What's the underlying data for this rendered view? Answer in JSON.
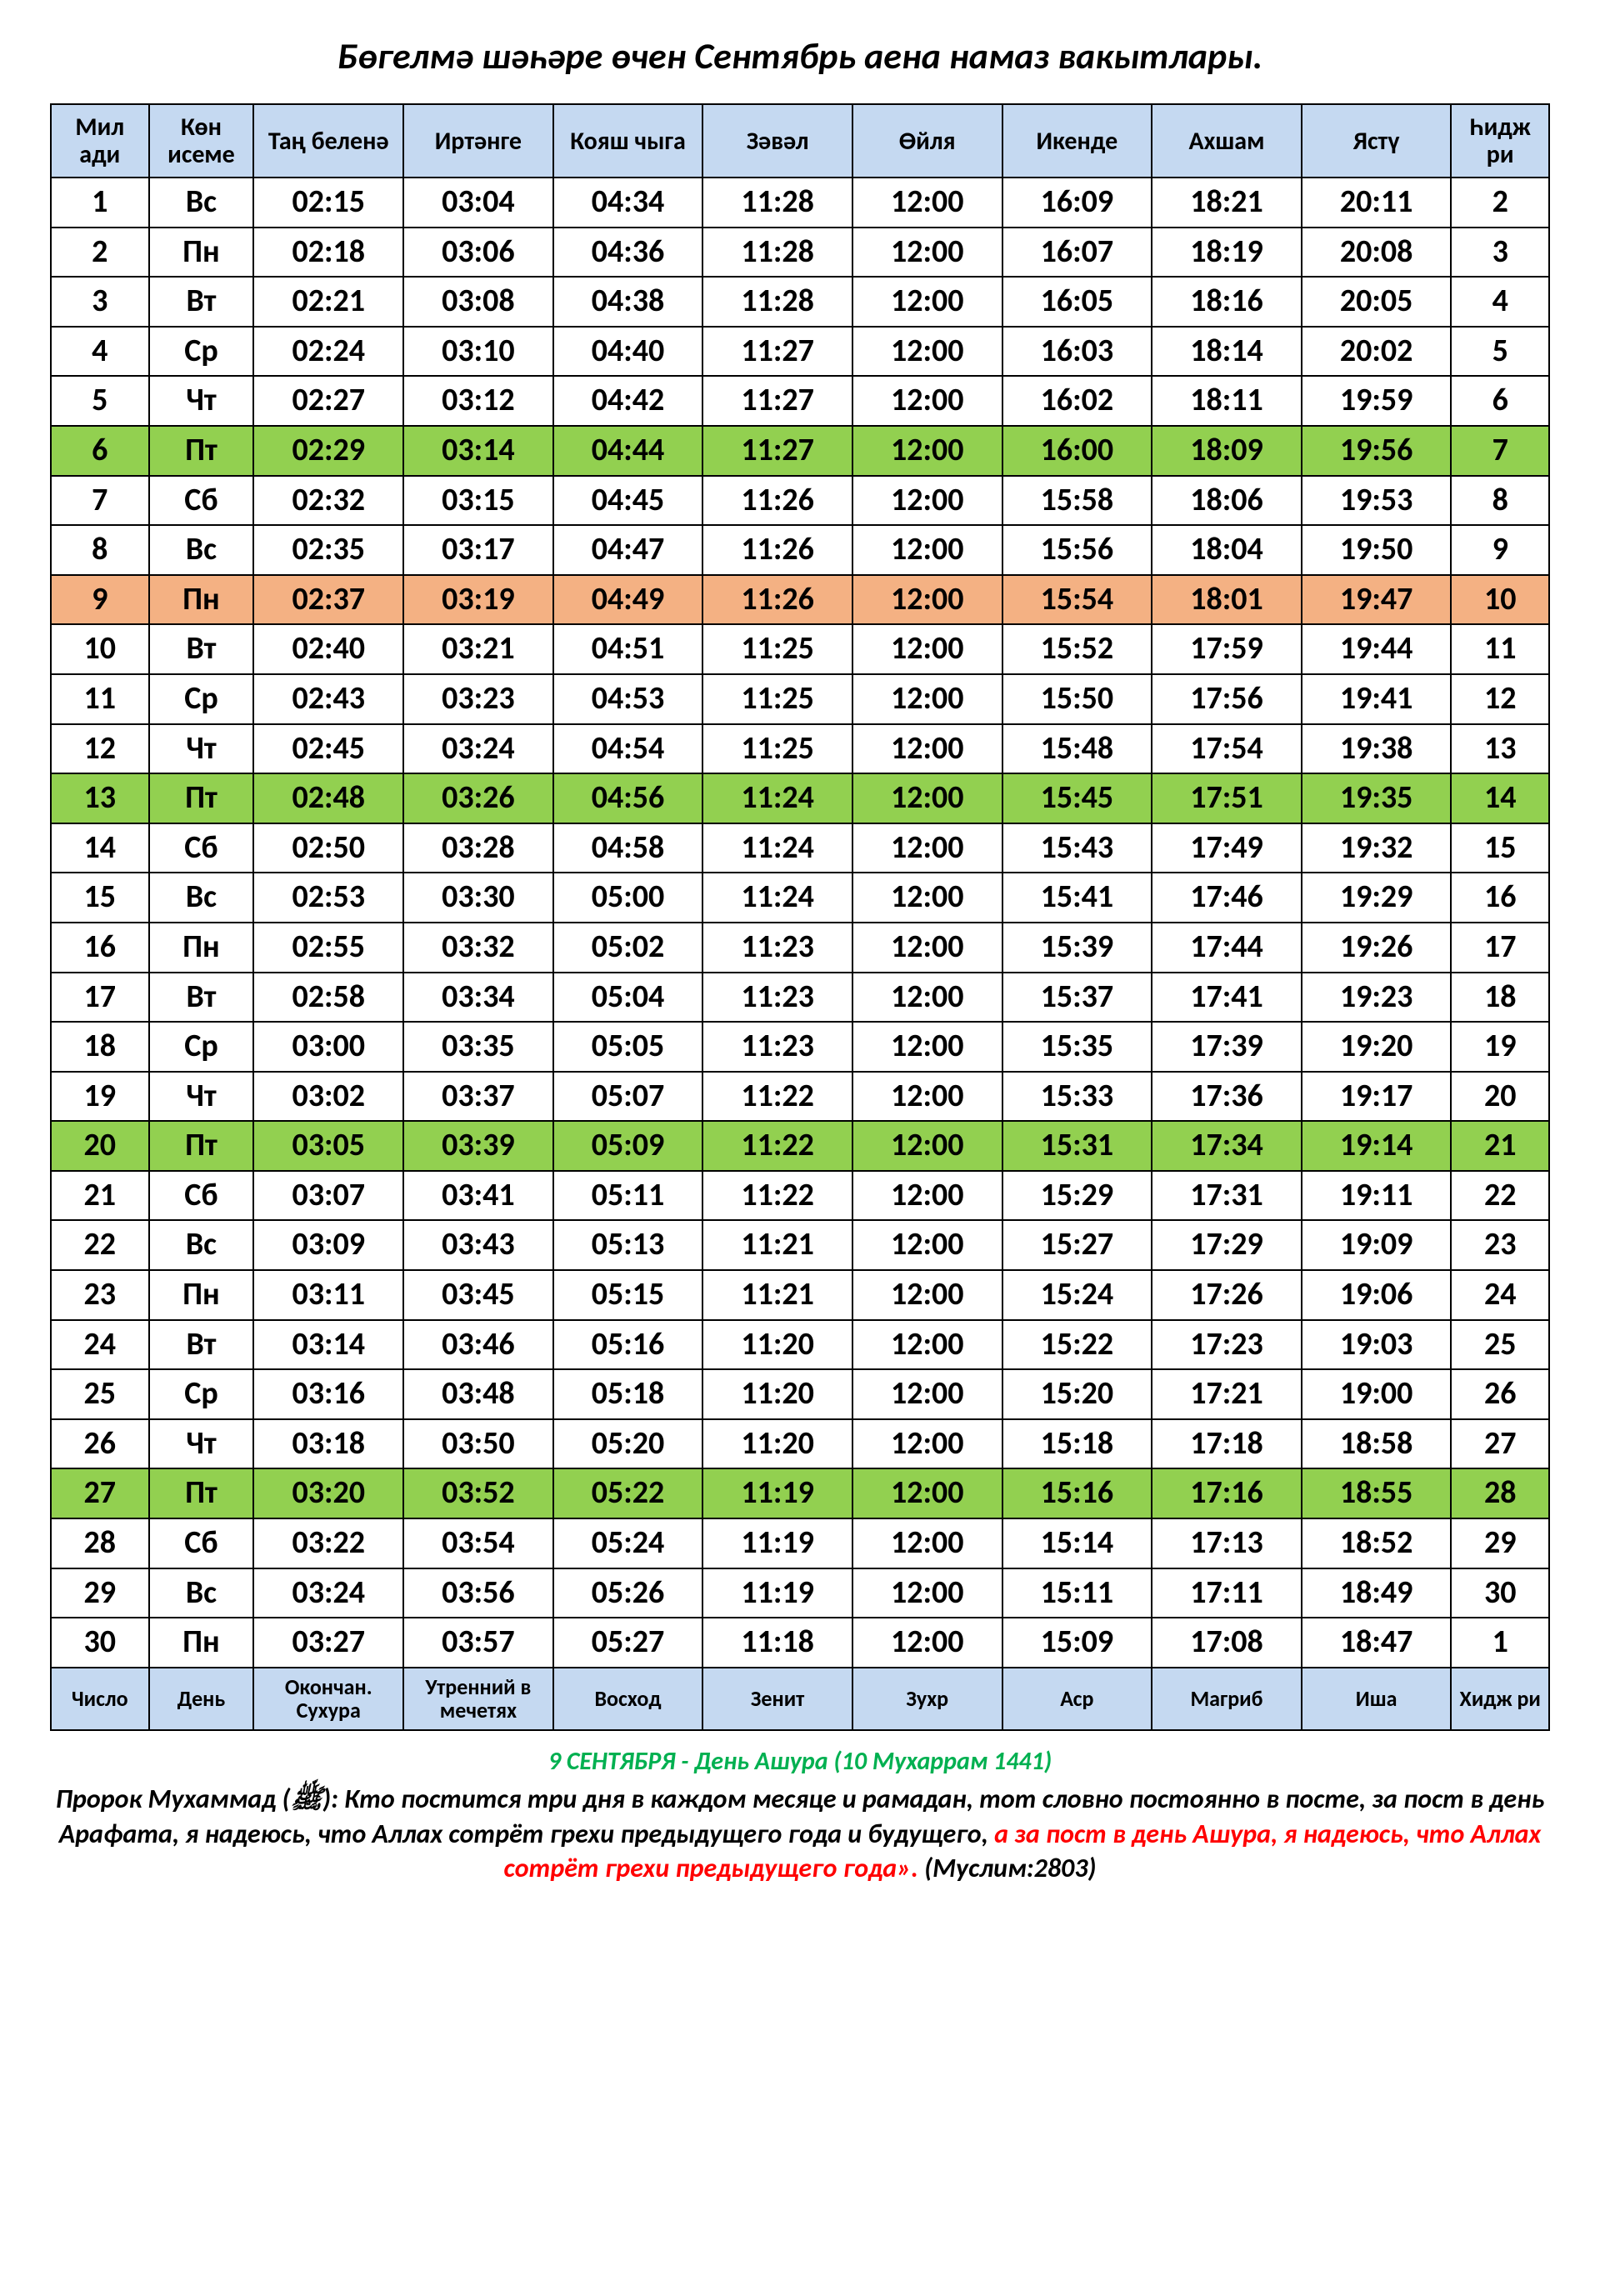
{
  "title": "Бөгелмә шәһәре өчен Сентябрь аена намаз вакытлары.",
  "colors": {
    "header_bg": "#c5d9f1",
    "footer_bg": "#c5d9f1",
    "friday_bg": "#92d050",
    "ashura_bg": "#f4b183",
    "footer_line1_color": "#00b050",
    "footer_line3_color": "#ff0000"
  },
  "headers_top": [
    "Мил ади",
    "Көн исеме",
    "Таң беленә",
    "Иртәнге",
    "Кояш чыга",
    "Зәвәл",
    "Өйля",
    "Икенде",
    "Ахшам",
    "Ястү",
    "Һидж ри"
  ],
  "headers_bottom": [
    "Число",
    "День",
    "Окончан. Сухура",
    "Утренний в мечетях",
    "Восход",
    "Зенит",
    "Зухр",
    "Аср",
    "Магриб",
    "Иша",
    "Хидж ри"
  ],
  "rows": [
    {
      "d": "1",
      "dn": "Вс",
      "c": [
        "02:15",
        "03:04",
        "04:34",
        "11:28",
        "12:00",
        "16:09",
        "18:21",
        "20:11"
      ],
      "h": "2",
      "hl": ""
    },
    {
      "d": "2",
      "dn": "Пн",
      "c": [
        "02:18",
        "03:06",
        "04:36",
        "11:28",
        "12:00",
        "16:07",
        "18:19",
        "20:08"
      ],
      "h": "3",
      "hl": ""
    },
    {
      "d": "3",
      "dn": "Вт",
      "c": [
        "02:21",
        "03:08",
        "04:38",
        "11:28",
        "12:00",
        "16:05",
        "18:16",
        "20:05"
      ],
      "h": "4",
      "hl": ""
    },
    {
      "d": "4",
      "dn": "Ср",
      "c": [
        "02:24",
        "03:10",
        "04:40",
        "11:27",
        "12:00",
        "16:03",
        "18:14",
        "20:02"
      ],
      "h": "5",
      "hl": ""
    },
    {
      "d": "5",
      "dn": "Чт",
      "c": [
        "02:27",
        "03:12",
        "04:42",
        "11:27",
        "12:00",
        "16:02",
        "18:11",
        "19:59"
      ],
      "h": "6",
      "hl": ""
    },
    {
      "d": "6",
      "dn": "Пт",
      "c": [
        "02:29",
        "03:14",
        "04:44",
        "11:27",
        "12:00",
        "16:00",
        "18:09",
        "19:56"
      ],
      "h": "7",
      "hl": "friday"
    },
    {
      "d": "7",
      "dn": "Сб",
      "c": [
        "02:32",
        "03:15",
        "04:45",
        "11:26",
        "12:00",
        "15:58",
        "18:06",
        "19:53"
      ],
      "h": "8",
      "hl": ""
    },
    {
      "d": "8",
      "dn": "Вс",
      "c": [
        "02:35",
        "03:17",
        "04:47",
        "11:26",
        "12:00",
        "15:56",
        "18:04",
        "19:50"
      ],
      "h": "9",
      "hl": ""
    },
    {
      "d": "9",
      "dn": "Пн",
      "c": [
        "02:37",
        "03:19",
        "04:49",
        "11:26",
        "12:00",
        "15:54",
        "18:01",
        "19:47"
      ],
      "h": "10",
      "hl": "ashura"
    },
    {
      "d": "10",
      "dn": "Вт",
      "c": [
        "02:40",
        "03:21",
        "04:51",
        "11:25",
        "12:00",
        "15:52",
        "17:59",
        "19:44"
      ],
      "h": "11",
      "hl": ""
    },
    {
      "d": "11",
      "dn": "Ср",
      "c": [
        "02:43",
        "03:23",
        "04:53",
        "11:25",
        "12:00",
        "15:50",
        "17:56",
        "19:41"
      ],
      "h": "12",
      "hl": ""
    },
    {
      "d": "12",
      "dn": "Чт",
      "c": [
        "02:45",
        "03:24",
        "04:54",
        "11:25",
        "12:00",
        "15:48",
        "17:54",
        "19:38"
      ],
      "h": "13",
      "hl": ""
    },
    {
      "d": "13",
      "dn": "Пт",
      "c": [
        "02:48",
        "03:26",
        "04:56",
        "11:24",
        "12:00",
        "15:45",
        "17:51",
        "19:35"
      ],
      "h": "14",
      "hl": "friday"
    },
    {
      "d": "14",
      "dn": "Сб",
      "c": [
        "02:50",
        "03:28",
        "04:58",
        "11:24",
        "12:00",
        "15:43",
        "17:49",
        "19:32"
      ],
      "h": "15",
      "hl": ""
    },
    {
      "d": "15",
      "dn": "Вс",
      "c": [
        "02:53",
        "03:30",
        "05:00",
        "11:24",
        "12:00",
        "15:41",
        "17:46",
        "19:29"
      ],
      "h": "16",
      "hl": ""
    },
    {
      "d": "16",
      "dn": "Пн",
      "c": [
        "02:55",
        "03:32",
        "05:02",
        "11:23",
        "12:00",
        "15:39",
        "17:44",
        "19:26"
      ],
      "h": "17",
      "hl": ""
    },
    {
      "d": "17",
      "dn": "Вт",
      "c": [
        "02:58",
        "03:34",
        "05:04",
        "11:23",
        "12:00",
        "15:37",
        "17:41",
        "19:23"
      ],
      "h": "18",
      "hl": ""
    },
    {
      "d": "18",
      "dn": "Ср",
      "c": [
        "03:00",
        "03:35",
        "05:05",
        "11:23",
        "12:00",
        "15:35",
        "17:39",
        "19:20"
      ],
      "h": "19",
      "hl": ""
    },
    {
      "d": "19",
      "dn": "Чт",
      "c": [
        "03:02",
        "03:37",
        "05:07",
        "11:22",
        "12:00",
        "15:33",
        "17:36",
        "19:17"
      ],
      "h": "20",
      "hl": ""
    },
    {
      "d": "20",
      "dn": "Пт",
      "c": [
        "03:05",
        "03:39",
        "05:09",
        "11:22",
        "12:00",
        "15:31",
        "17:34",
        "19:14"
      ],
      "h": "21",
      "hl": "friday"
    },
    {
      "d": "21",
      "dn": "Сб",
      "c": [
        "03:07",
        "03:41",
        "05:11",
        "11:22",
        "12:00",
        "15:29",
        "17:31",
        "19:11"
      ],
      "h": "22",
      "hl": ""
    },
    {
      "d": "22",
      "dn": "Вс",
      "c": [
        "03:09",
        "03:43",
        "05:13",
        "11:21",
        "12:00",
        "15:27",
        "17:29",
        "19:09"
      ],
      "h": "23",
      "hl": ""
    },
    {
      "d": "23",
      "dn": "Пн",
      "c": [
        "03:11",
        "03:45",
        "05:15",
        "11:21",
        "12:00",
        "15:24",
        "17:26",
        "19:06"
      ],
      "h": "24",
      "hl": ""
    },
    {
      "d": "24",
      "dn": "Вт",
      "c": [
        "03:14",
        "03:46",
        "05:16",
        "11:20",
        "12:00",
        "15:22",
        "17:23",
        "19:03"
      ],
      "h": "25",
      "hl": ""
    },
    {
      "d": "25",
      "dn": "Ср",
      "c": [
        "03:16",
        "03:48",
        "05:18",
        "11:20",
        "12:00",
        "15:20",
        "17:21",
        "19:00"
      ],
      "h": "26",
      "hl": ""
    },
    {
      "d": "26",
      "dn": "Чт",
      "c": [
        "03:18",
        "03:50",
        "05:20",
        "11:20",
        "12:00",
        "15:18",
        "17:18",
        "18:58"
      ],
      "h": "27",
      "hl": ""
    },
    {
      "d": "27",
      "dn": "Пт",
      "c": [
        "03:20",
        "03:52",
        "05:22",
        "11:19",
        "12:00",
        "15:16",
        "17:16",
        "18:55"
      ],
      "h": "28",
      "hl": "friday"
    },
    {
      "d": "28",
      "dn": "Сб",
      "c": [
        "03:22",
        "03:54",
        "05:24",
        "11:19",
        "12:00",
        "15:14",
        "17:13",
        "18:52"
      ],
      "h": "29",
      "hl": ""
    },
    {
      "d": "29",
      "dn": "Вс",
      "c": [
        "03:24",
        "03:56",
        "05:26",
        "11:19",
        "12:00",
        "15:11",
        "17:11",
        "18:49"
      ],
      "h": "30",
      "hl": ""
    },
    {
      "d": "30",
      "dn": "Пн",
      "c": [
        "03:27",
        "03:57",
        "05:27",
        "11:18",
        "12:00",
        "15:09",
        "17:08",
        "18:47"
      ],
      "h": "1",
      "hl": ""
    }
  ],
  "footer": {
    "line1": "9 СЕНТЯБРЯ  - День  Ашура (10 Мухаррам 1441)",
    "line2a": "Пророк Мухаммад (ﷺ): Кто постится три дня в каждом месяце и рамадан, тот словно постоянно в посте, за пост в день Арафата, я надеюсь, что Аллах сотрёт грехи предыдущего года и будущего,",
    "line2b": "а за пост в день Ашура, я надеюсь, что Аллах сотрёт грехи предыдущего года».",
    "line2c": " (Муслим:2803)"
  }
}
